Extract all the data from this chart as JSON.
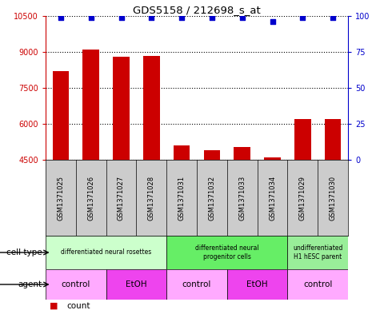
{
  "title": "GDS5158 / 212698_s_at",
  "samples": [
    "GSM1371025",
    "GSM1371026",
    "GSM1371027",
    "GSM1371028",
    "GSM1371031",
    "GSM1371032",
    "GSM1371033",
    "GSM1371034",
    "GSM1371029",
    "GSM1371030"
  ],
  "counts": [
    8200,
    9100,
    8800,
    8850,
    5100,
    4900,
    5050,
    4600,
    6200,
    6200
  ],
  "percentiles": [
    99,
    99,
    99,
    99,
    99,
    99,
    99,
    96,
    99,
    99
  ],
  "ylim_left": [
    4500,
    10500
  ],
  "ylim_right": [
    0,
    100
  ],
  "yticks_left": [
    4500,
    6000,
    7500,
    9000,
    10500
  ],
  "yticks_right": [
    0,
    25,
    50,
    75,
    100
  ],
  "bar_color": "#cc0000",
  "dot_color": "#0000cc",
  "cell_type_groups": [
    {
      "label": "differentiated neural rosettes",
      "start": 0,
      "end": 3,
      "color": "#ccffcc"
    },
    {
      "label": "differentiated neural\nprogenitor cells",
      "start": 4,
      "end": 7,
      "color": "#66ee66"
    },
    {
      "label": "undifferentiated\nH1 hESC parent",
      "start": 8,
      "end": 9,
      "color": "#99ee99"
    }
  ],
  "agent_groups": [
    {
      "label": "control",
      "start": 0,
      "end": 1,
      "color": "#ffaaff"
    },
    {
      "label": "EtOH",
      "start": 2,
      "end": 3,
      "color": "#ee44ee"
    },
    {
      "label": "control",
      "start": 4,
      "end": 5,
      "color": "#ffaaff"
    },
    {
      "label": "EtOH",
      "start": 6,
      "end": 7,
      "color": "#ee44ee"
    },
    {
      "label": "control",
      "start": 8,
      "end": 9,
      "color": "#ffaaff"
    }
  ],
  "cell_type_label": "cell type",
  "agent_label": "agent",
  "legend_count_color": "#cc0000",
  "legend_dot_color": "#0000cc",
  "bar_width": 0.55,
  "sample_bg_color": "#cccccc"
}
